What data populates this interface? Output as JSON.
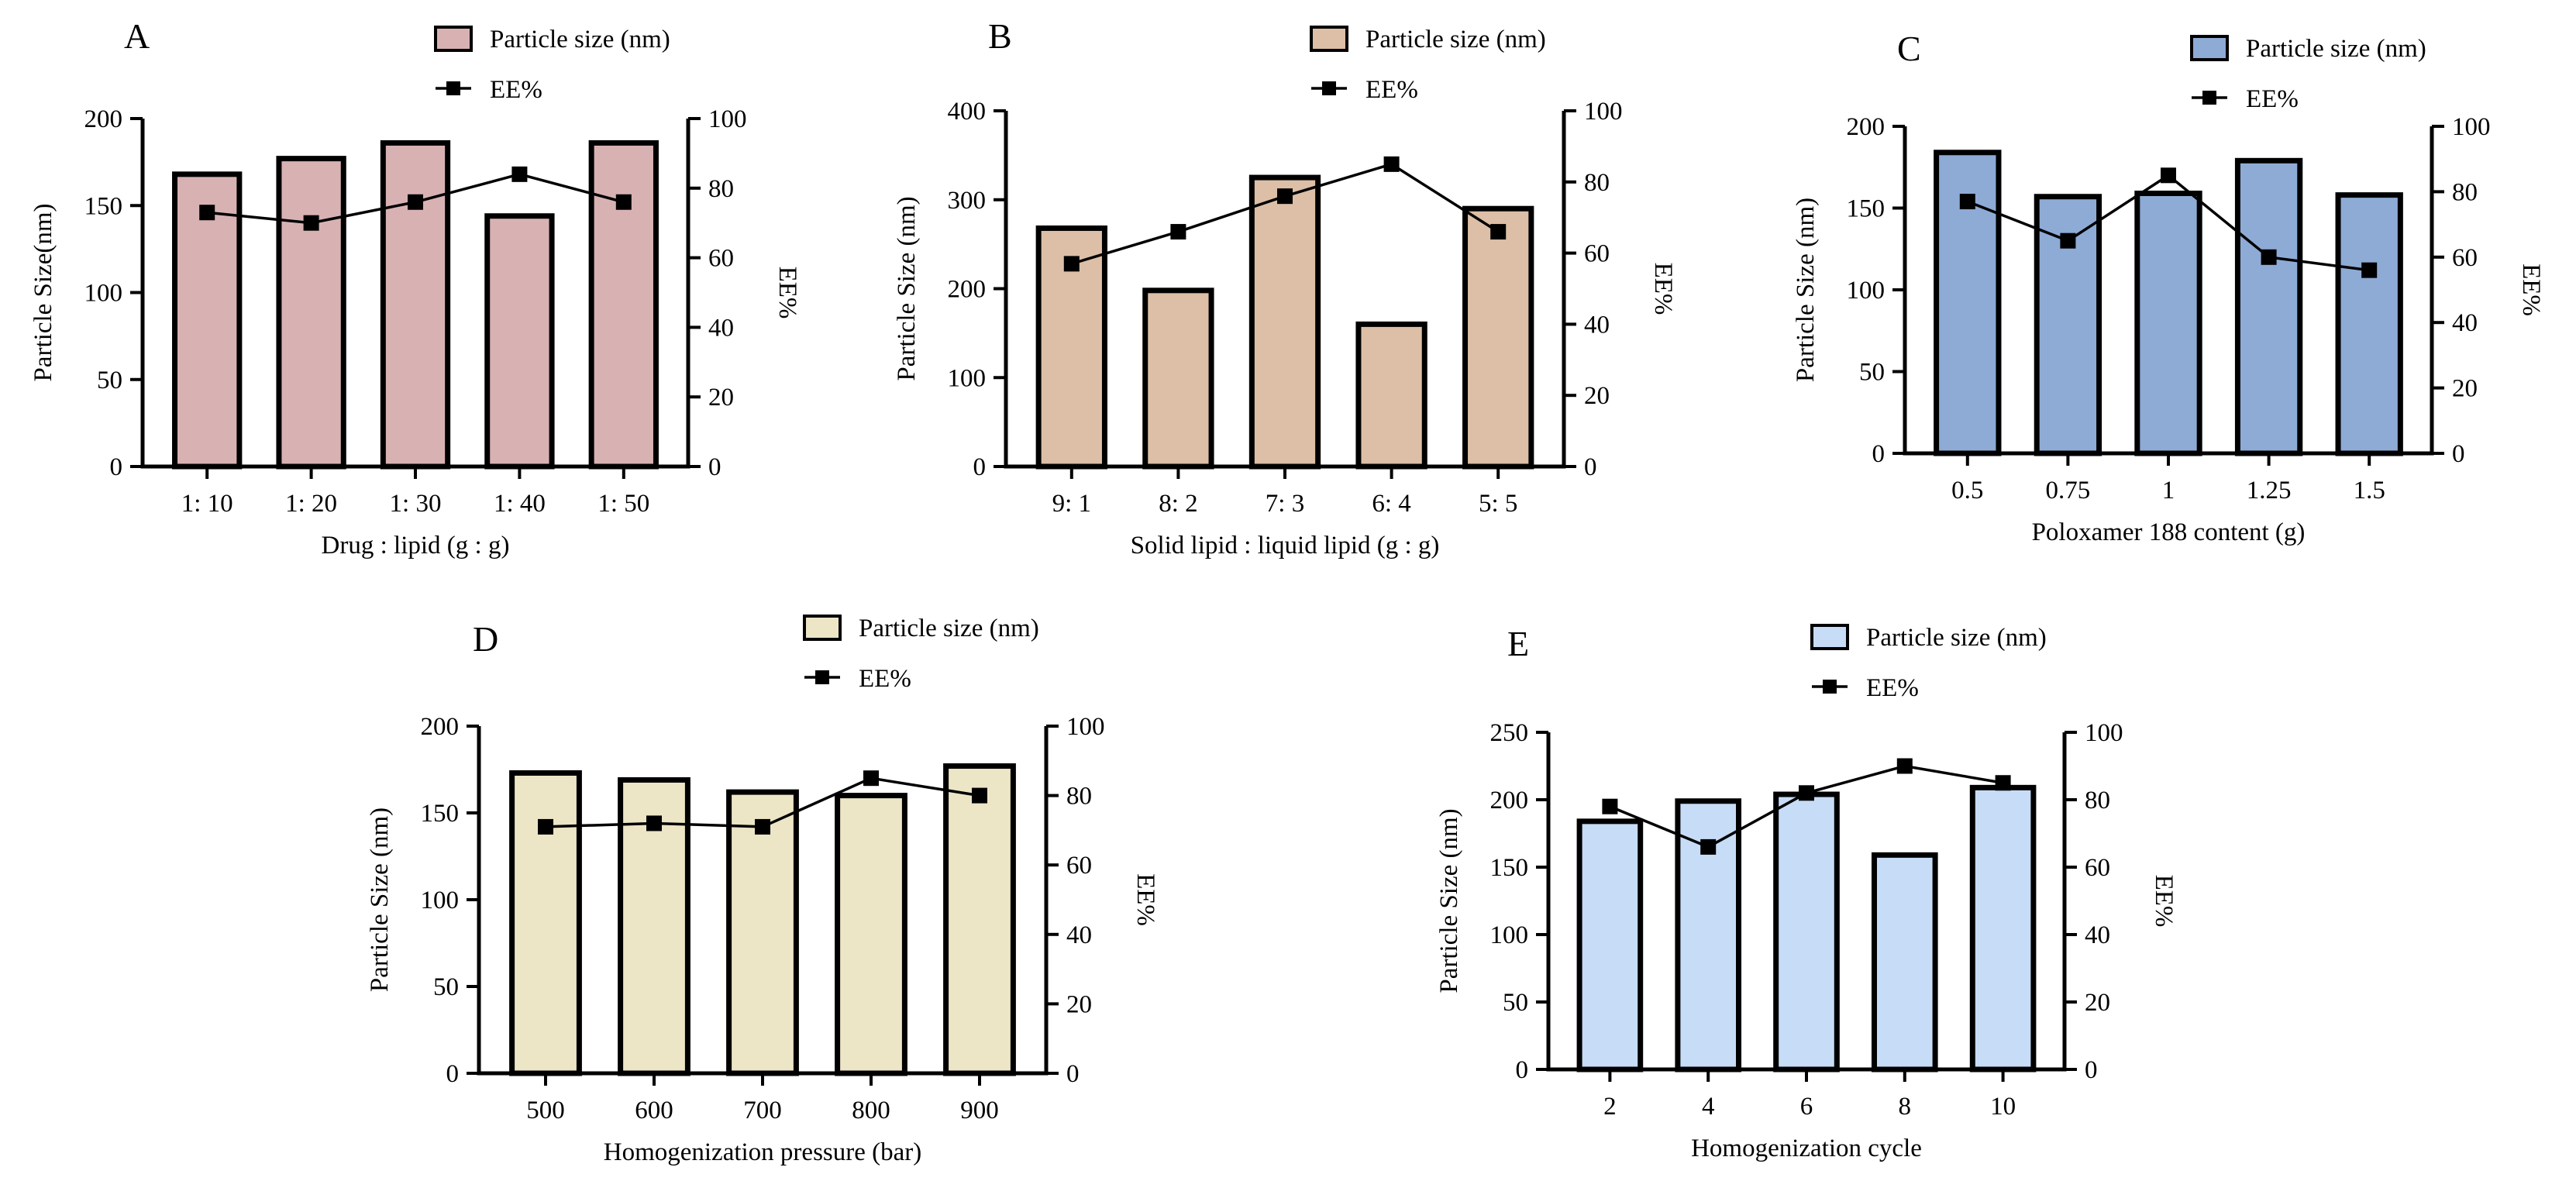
{
  "chart_data": [
    {
      "panel": "A",
      "type": "bar",
      "categories": [
        "1: 10",
        "1: 20",
        "1: 30",
        "1: 40",
        "1: 50"
      ],
      "series": [
        {
          "name": "Particle size (nm)",
          "kind": "bar",
          "axis": "left",
          "values": [
            168,
            177,
            186,
            144,
            186
          ]
        },
        {
          "name": "EE%",
          "kind": "line",
          "axis": "right",
          "values": [
            73,
            70,
            76,
            84,
            76
          ]
        }
      ],
      "xlabel": "Drug : lipid (g : g)",
      "ylabel": "Particle Size(nm)",
      "y2label": "EE%",
      "ylim": [
        0,
        200
      ],
      "yticks": [
        "0",
        "50",
        "100",
        "150",
        "200"
      ],
      "y2lim": [
        0,
        100
      ],
      "y2ticks": [
        "0",
        "20",
        "40",
        "60",
        "80",
        "100"
      ],
      "bar_color": "#d8b2b3"
    },
    {
      "panel": "B",
      "type": "bar",
      "categories": [
        "9: 1",
        "8: 2",
        "7: 3",
        "6: 4",
        "5: 5"
      ],
      "series": [
        {
          "name": "Particle size (nm)",
          "kind": "bar",
          "axis": "left",
          "values": [
            268,
            198,
            325,
            160,
            290
          ]
        },
        {
          "name": "EE%",
          "kind": "line",
          "axis": "right",
          "values": [
            57,
            66,
            76,
            85,
            66
          ]
        }
      ],
      "xlabel": "Solid lipid : liquid lipid (g : g)",
      "ylabel": "Particle Size (nm)",
      "y2label": "EE%",
      "ylim": [
        0,
        400
      ],
      "yticks": [
        "0",
        "100",
        "200",
        "300",
        "400"
      ],
      "y2lim": [
        0,
        100
      ],
      "y2ticks": [
        "0",
        "20",
        "40",
        "60",
        "80",
        "100"
      ],
      "bar_color": "#dcbfa6"
    },
    {
      "panel": "C",
      "type": "bar",
      "categories": [
        "0.5",
        "0.75",
        "1",
        "1.25",
        "1.5"
      ],
      "series": [
        {
          "name": "Particle size (nm)",
          "kind": "bar",
          "axis": "left",
          "values": [
            184,
            157,
            159,
            179,
            158
          ]
        },
        {
          "name": "EE%",
          "kind": "line",
          "axis": "right",
          "values": [
            77,
            65,
            85,
            60,
            56
          ]
        }
      ],
      "xlabel": "Poloxamer 188 content (g)",
      "ylabel": "Particle Size (nm)",
      "y2label": "EE%",
      "ylim": [
        0,
        200
      ],
      "yticks": [
        "0",
        "50",
        "100",
        "150",
        "200"
      ],
      "y2lim": [
        0,
        100
      ],
      "y2ticks": [
        "0",
        "20",
        "40",
        "60",
        "80",
        "100"
      ],
      "bar_color": "#8eabd5"
    },
    {
      "panel": "D",
      "type": "bar",
      "categories": [
        "500",
        "600",
        "700",
        "800",
        "900"
      ],
      "series": [
        {
          "name": "Particle size (nm)",
          "kind": "bar",
          "axis": "left",
          "values": [
            173,
            169,
            162,
            160,
            177
          ]
        },
        {
          "name": "EE%",
          "kind": "line",
          "axis": "right",
          "values": [
            71,
            72,
            71,
            85,
            80
          ]
        }
      ],
      "xlabel": "Homogenization pressure (bar)",
      "ylabel": "Particle Size (nm)",
      "y2label": "EE%",
      "ylim": [
        0,
        200
      ],
      "yticks": [
        "0",
        "50",
        "100",
        "150",
        "200"
      ],
      "y2lim": [
        0,
        100
      ],
      "y2ticks": [
        "0",
        "20",
        "40",
        "60",
        "80",
        "100"
      ],
      "bar_color": "#ece5c6"
    },
    {
      "panel": "E",
      "type": "bar",
      "categories": [
        "2",
        "4",
        "6",
        "8",
        "10"
      ],
      "series": [
        {
          "name": "Particle size (nm)",
          "kind": "bar",
          "axis": "left",
          "values": [
            184,
            199,
            204,
            159,
            209
          ]
        },
        {
          "name": "EE%",
          "kind": "line",
          "axis": "right",
          "values": [
            78,
            66,
            82,
            90,
            85
          ]
        }
      ],
      "xlabel": "Homogenization cycle",
      "ylabel": "Particle Size (nm)",
      "y2label": "EE%",
      "ylim": [
        0,
        250
      ],
      "yticks": [
        "0",
        "50",
        "100",
        "150",
        "200",
        "250"
      ],
      "y2lim": [
        0,
        100
      ],
      "y2ticks": [
        "0",
        "20",
        "40",
        "60",
        "80",
        "100"
      ],
      "bar_color": "#c7dcf6"
    }
  ]
}
